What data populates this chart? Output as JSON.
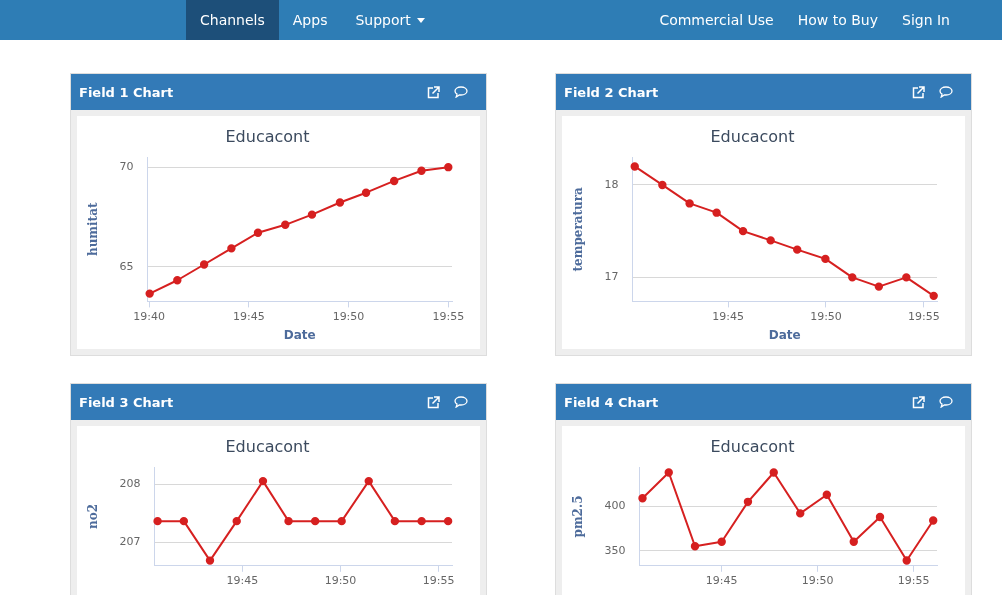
{
  "chart_data": [
    {
      "type": "other",
      "annotations": [
        "Channels",
        "Apps",
        "Support",
        "Commercial Use",
        "How to Buy",
        "Sign In"
      ]
    },
    {
      "type": "line",
      "title": "Field 1 Chart",
      "subtitle": "Educacont",
      "xlabel": "Date",
      "ylabel": "humitat",
      "color": "#d62020",
      "marker": "circle",
      "grid": "y",
      "xlim": [
        19.6653,
        19.9198
      ],
      "ylim": [
        63.27,
        70.5
      ],
      "xticks": [
        {
          "value": 19.6667,
          "label": "19:40"
        },
        {
          "value": 19.75,
          "label": "19:45"
        },
        {
          "value": 19.8333,
          "label": "19:50"
        },
        {
          "value": 19.9167,
          "label": "19:55"
        }
      ],
      "yticks": [
        65,
        70
      ],
      "x": [
        19.6672,
        19.6903,
        19.7127,
        19.7355,
        19.7577,
        19.7805,
        19.8028,
        19.8262,
        19.848,
        19.8715,
        19.8943,
        19.9167
      ],
      "values": [
        63.66,
        64.33,
        65.12,
        65.93,
        66.71,
        67.11,
        67.62,
        68.23,
        68.72,
        69.31,
        69.82,
        70.0
      ]
    },
    {
      "type": "line",
      "title": "Field 2 Chart",
      "subtitle": "Educacont",
      "xlabel": "Date",
      "ylabel": "temperatura",
      "color": "#d62020",
      "marker": "circle",
      "grid": "y",
      "xlim": [
        19.6685,
        19.9278
      ],
      "ylim": [
        16.74,
        18.3
      ],
      "xticks": [
        {
          "value": 19.75,
          "label": "19:45"
        },
        {
          "value": 19.8333,
          "label": "19:50"
        },
        {
          "value": 19.9167,
          "label": "19:55"
        }
      ],
      "yticks": [
        17,
        18
      ],
      "x": [
        19.6705,
        19.694,
        19.7172,
        19.7402,
        19.7627,
        19.7862,
        19.8088,
        19.8328,
        19.8557,
        19.8783,
        19.9017,
        19.925
      ],
      "values": [
        18.2,
        18.0,
        17.8,
        17.7,
        17.5,
        17.4,
        17.3,
        17.2,
        17.0,
        16.9,
        17.0,
        16.8
      ]
    },
    {
      "type": "line",
      "title": "Field 3 Chart",
      "subtitle": "Educacont",
      "ylabel": "no2",
      "color": "#d62020",
      "marker": "circle",
      "grid": "y",
      "xlim": [
        19.6753,
        19.928
      ],
      "ylim": [
        206.6,
        208.3
      ],
      "xticks": [
        {
          "value": 19.75,
          "label": "19:45"
        },
        {
          "value": 19.8333,
          "label": "19:50"
        },
        {
          "value": 19.9167,
          "label": "19:55"
        }
      ],
      "yticks": [
        207,
        208
      ],
      "x": [
        19.678,
        19.7003,
        19.7225,
        19.7452,
        19.7675,
        19.7892,
        19.8118,
        19.8343,
        19.8573,
        19.8795,
        19.9022,
        19.9247
      ],
      "values": [
        207.37,
        207.37,
        206.69,
        207.37,
        208.06,
        207.37,
        207.37,
        207.37,
        208.06,
        207.37,
        207.37,
        207.37
      ]
    },
    {
      "type": "line",
      "title": "Field 4 Chart",
      "subtitle": "Educacont",
      "ylabel": "pm2.5",
      "color": "#d62020",
      "marker": "circle",
      "grid": "y",
      "xlim": [
        19.6785,
        19.937
      ],
      "ylim": [
        333,
        444
      ],
      "xticks": [
        {
          "value": 19.75,
          "label": "19:45"
        },
        {
          "value": 19.8333,
          "label": "19:50"
        },
        {
          "value": 19.9167,
          "label": "19:55"
        }
      ],
      "yticks": [
        350,
        400
      ],
      "x": [
        19.6812,
        19.704,
        19.7268,
        19.75,
        19.7728,
        19.7952,
        19.8182,
        19.8413,
        19.8647,
        19.8875,
        19.9107,
        19.9337
      ],
      "values": [
        409,
        438,
        355,
        360,
        405,
        438,
        392,
        413,
        360,
        388,
        339,
        384
      ]
    }
  ]
}
